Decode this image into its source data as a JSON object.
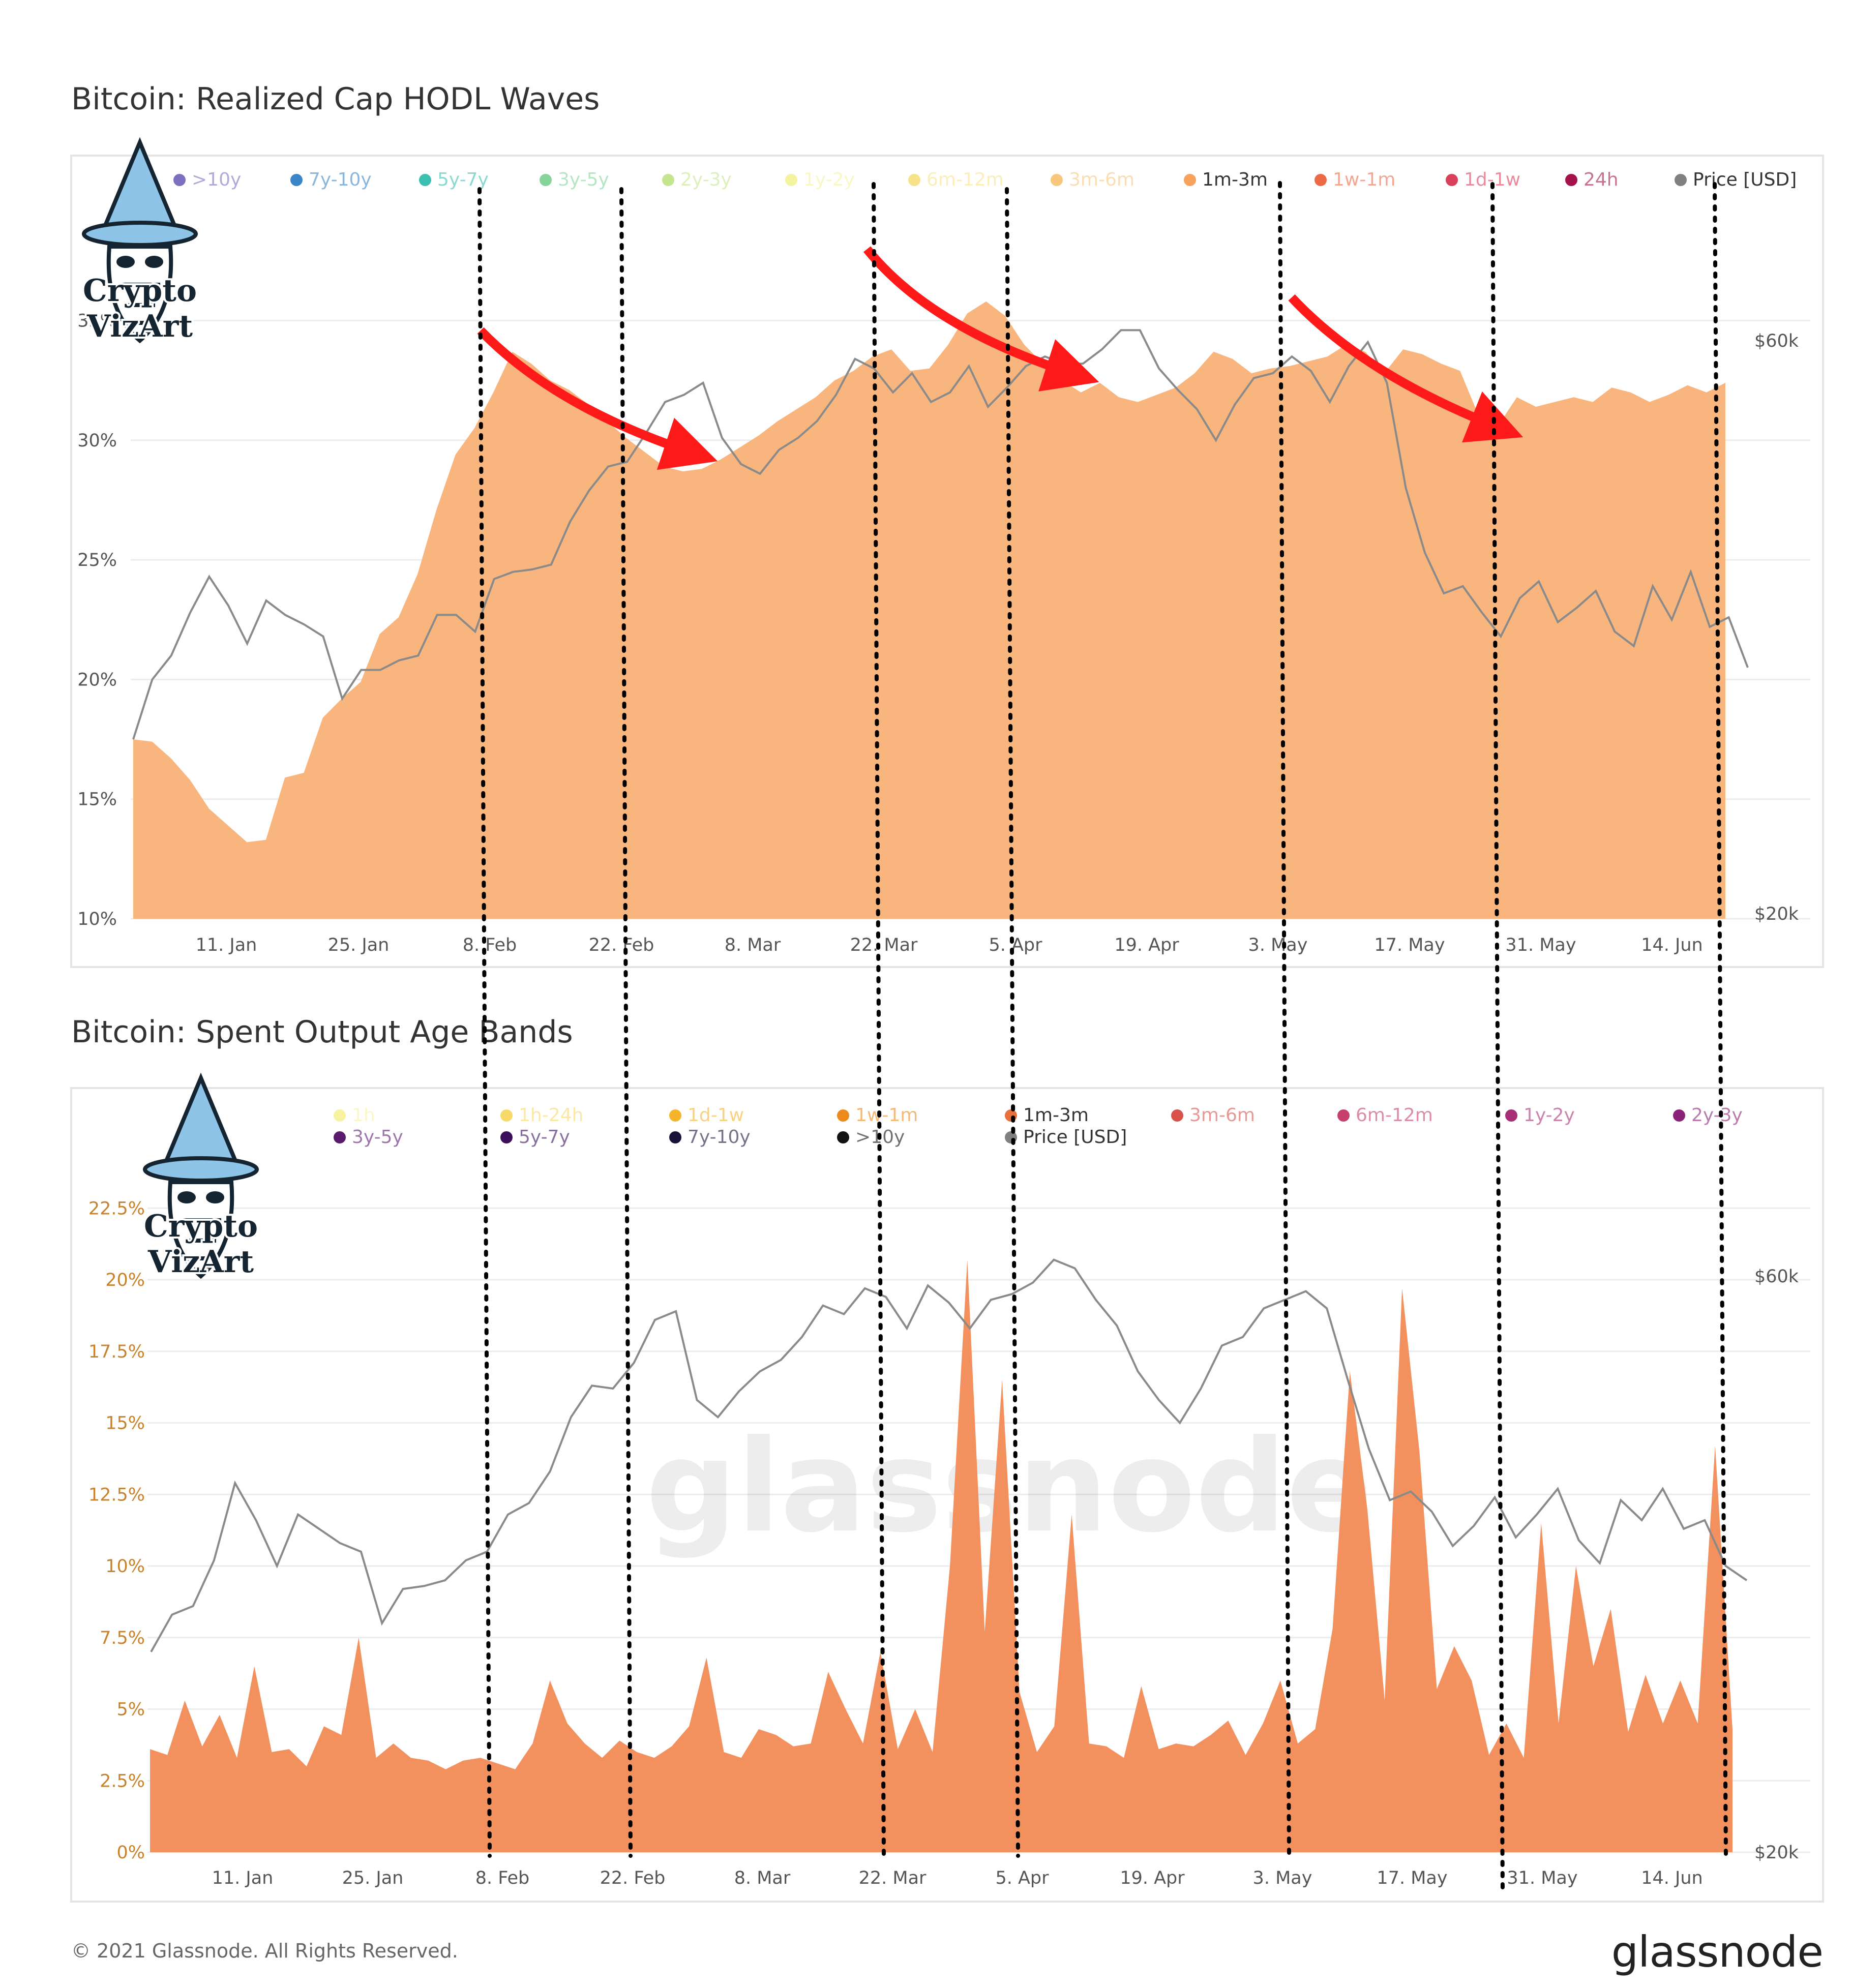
{
  "x_ticks": [
    "11. Jan",
    "25. Jan",
    "8. Feb",
    "22. Feb",
    "8. Mar",
    "22. Mar",
    "5. Apr",
    "19. Apr",
    "3. May",
    "17. May",
    "31. May",
    "14. Jun"
  ],
  "chart_data": [
    {
      "type": "area",
      "title": "Bitcoin: Realized Cap HODL Waves",
      "legend": [
        {
          "label": ">10y",
          "color": "#7b6fbf"
        },
        {
          "label": "7y-10y",
          "color": "#3a86c8"
        },
        {
          "label": "5y-7y",
          "color": "#3bbfb0"
        },
        {
          "label": "3y-5y",
          "color": "#86d49a"
        },
        {
          "label": "2y-3y",
          "color": "#c4e68f"
        },
        {
          "label": "1y-2y",
          "color": "#f3f3a0"
        },
        {
          "label": "6m-12m",
          "color": "#f9e38a"
        },
        {
          "label": "3m-6m",
          "color": "#f9c67d"
        },
        {
          "label": "1m-3m",
          "color": "#f7a25d"
        },
        {
          "label": "1w-1m",
          "color": "#ee6a46"
        },
        {
          "label": "1d-1w",
          "color": "#d9405a"
        },
        {
          "label": "24h",
          "color": "#a3124b"
        },
        {
          "label": "Price [USD]",
          "color": "#808080"
        }
      ],
      "active_legend": [
        "1m-3m",
        "Price [USD]"
      ],
      "y_ticks": [
        "10%",
        "15%",
        "20%",
        "25%",
        "30%",
        "35%"
      ],
      "y2_ticks": [
        "$20k",
        "$60k"
      ],
      "ylim": [
        10,
        36.5
      ],
      "series": [
        {
          "name": "1m-3m",
          "color": "#f9b57e",
          "values": [
            17.5,
            17.4,
            16.7,
            15.8,
            14.6,
            13.9,
            13.2,
            13.3,
            15.9,
            16.1,
            18.4,
            19.2,
            19.9,
            21.9,
            22.6,
            24.4,
            27.1,
            29.4,
            30.5,
            32.0,
            33.7,
            33.2,
            32.5,
            32.1,
            31.5,
            30.8,
            30.1,
            29.5,
            28.9,
            28.7,
            28.8,
            29.2,
            29.7,
            30.2,
            30.8,
            31.3,
            31.8,
            32.5,
            32.9,
            33.5,
            33.8,
            32.9,
            33.0,
            34.0,
            35.3,
            35.8,
            35.2,
            34.0,
            33.2,
            32.5,
            32.0,
            32.4,
            31.8,
            31.6,
            31.9,
            32.2,
            32.8,
            33.7,
            33.4,
            32.8,
            33.0,
            33.1,
            33.3,
            33.5,
            34.0,
            33.7,
            32.8,
            33.8,
            33.6,
            33.2,
            32.9,
            31.0,
            30.6,
            31.8,
            31.4,
            31.6,
            31.8,
            31.6,
            32.2,
            32.0,
            31.6,
            31.9,
            32.3,
            32.0,
            32.4
          ]
        },
        {
          "name": "Price [USD]",
          "color": "#8a8a8a",
          "values": [
            17.5,
            20.0,
            21.0,
            22.8,
            24.3,
            23.1,
            21.5,
            23.3,
            22.7,
            22.3,
            21.8,
            19.2,
            20.4,
            20.4,
            20.8,
            21.0,
            22.7,
            22.7,
            22.0,
            24.2,
            24.5,
            24.6,
            24.8,
            26.6,
            27.9,
            28.9,
            29.1,
            30.3,
            31.6,
            31.9,
            32.4,
            30.1,
            29.0,
            28.6,
            29.6,
            30.1,
            30.8,
            31.9,
            33.4,
            33.0,
            32.0,
            32.8,
            31.6,
            32.0,
            33.1,
            31.4,
            32.2,
            33.1,
            33.5,
            33.2,
            33.2,
            33.8,
            34.6,
            34.6,
            33.0,
            32.1,
            31.3,
            30.0,
            31.5,
            32.6,
            32.8,
            33.5,
            32.9,
            31.6,
            33.1,
            34.1,
            32.4,
            28.0,
            25.3,
            23.6,
            23.9,
            22.8,
            21.8,
            23.4,
            24.1,
            22.4,
            23.0,
            23.7,
            22.0,
            21.4,
            23.9,
            22.5,
            24.5,
            22.2,
            22.6,
            20.5
          ]
        }
      ],
      "annotations": [
        "red-arrow-1",
        "red-arrow-2",
        "red-arrow-3"
      ]
    },
    {
      "type": "area",
      "title": "Bitcoin: Spent Output Age Bands",
      "legend": [
        {
          "label": "1h",
          "color": "#f7f3a0"
        },
        {
          "label": "1h-24h",
          "color": "#f7d96a"
        },
        {
          "label": "1d-1w",
          "color": "#f5b42c"
        },
        {
          "label": "1w-1m",
          "color": "#ee8a1c"
        },
        {
          "label": "1m-3m",
          "color": "#e8703c"
        },
        {
          "label": "3m-6m",
          "color": "#d8514a"
        },
        {
          "label": "6m-12m",
          "color": "#c6406b"
        },
        {
          "label": "1y-2y",
          "color": "#a82e78"
        },
        {
          "label": "2y-3y",
          "color": "#8a2378"
        },
        {
          "label": "3y-5y",
          "color": "#5a1a6e"
        },
        {
          "label": "5y-7y",
          "color": "#3b0f5a"
        },
        {
          "label": "7y-10y",
          "color": "#1a1238"
        },
        {
          "label": ">10y",
          "color": "#111111"
        },
        {
          "label": "Price [USD]",
          "color": "#808080"
        }
      ],
      "active_legend": [
        "1m-3m",
        "Price [USD]"
      ],
      "y_ticks": [
        "0%",
        "2.5%",
        "5%",
        "7.5%",
        "10%",
        "12.5%",
        "15%",
        "17.5%",
        "20%",
        "22.5%"
      ],
      "y2_ticks": [
        "$20k",
        "$60k"
      ],
      "ylim": [
        0,
        23.5
      ],
      "series": [
        {
          "name": "1m-3m",
          "color": "#f2905e",
          "values": [
            3.6,
            3.4,
            5.3,
            3.7,
            4.8,
            3.3,
            6.5,
            3.5,
            3.6,
            3.0,
            4.4,
            4.1,
            7.5,
            3.3,
            3.8,
            3.3,
            3.2,
            2.9,
            3.2,
            3.3,
            3.1,
            2.9,
            3.8,
            6.0,
            4.5,
            3.8,
            3.3,
            3.9,
            3.5,
            3.3,
            3.7,
            4.4,
            6.8,
            3.5,
            3.3,
            4.3,
            4.1,
            3.7,
            3.8,
            6.3,
            5.0,
            3.8,
            7.0,
            3.6,
            5.0,
            3.5,
            10.0,
            20.7,
            7.7,
            16.5,
            5.6,
            3.5,
            4.4,
            11.8,
            3.8,
            3.7,
            3.3,
            5.8,
            3.6,
            3.8,
            3.7,
            4.1,
            4.6,
            3.4,
            4.5,
            6.0,
            3.8,
            4.3,
            7.8,
            16.8,
            12.0,
            5.3,
            19.7,
            14.0,
            5.7,
            7.2,
            6.0,
            3.4,
            4.5,
            3.3,
            11.5,
            4.5,
            10.0,
            6.5,
            8.5,
            4.2,
            6.2,
            4.5,
            6.0,
            4.5,
            14.2,
            4.3
          ]
        },
        {
          "name": "Price [USD]",
          "color": "#8a8a8a",
          "values": [
            7.0,
            8.3,
            8.6,
            10.2,
            12.9,
            11.6,
            10.0,
            11.8,
            11.3,
            10.8,
            10.5,
            8.0,
            9.2,
            9.3,
            9.5,
            10.2,
            10.5,
            11.8,
            12.2,
            13.3,
            15.2,
            16.3,
            16.2,
            17.1,
            18.6,
            18.9,
            15.8,
            15.2,
            16.1,
            16.8,
            17.2,
            18.0,
            19.1,
            18.8,
            19.7,
            19.4,
            18.3,
            19.8,
            19.2,
            18.3,
            19.3,
            19.5,
            19.9,
            20.7,
            20.4,
            19.3,
            18.4,
            16.8,
            15.8,
            15.0,
            16.2,
            17.7,
            18.0,
            19.0,
            19.3,
            19.6,
            19.0,
            16.5,
            14.1,
            12.3,
            12.6,
            11.9,
            10.7,
            11.4,
            12.4,
            11.0,
            11.8,
            12.7,
            10.9,
            10.1,
            12.3,
            11.6,
            12.7,
            11.3,
            11.6,
            10.0,
            9.5
          ]
        }
      ],
      "annotations": []
    }
  ],
  "logo": {
    "line1": "Crypto",
    "line2": "VizArt"
  },
  "watermark": "glassnode",
  "footer": {
    "copyright": "© 2021 Glassnode. All Rights Reserved.",
    "brand": "glassnode"
  }
}
